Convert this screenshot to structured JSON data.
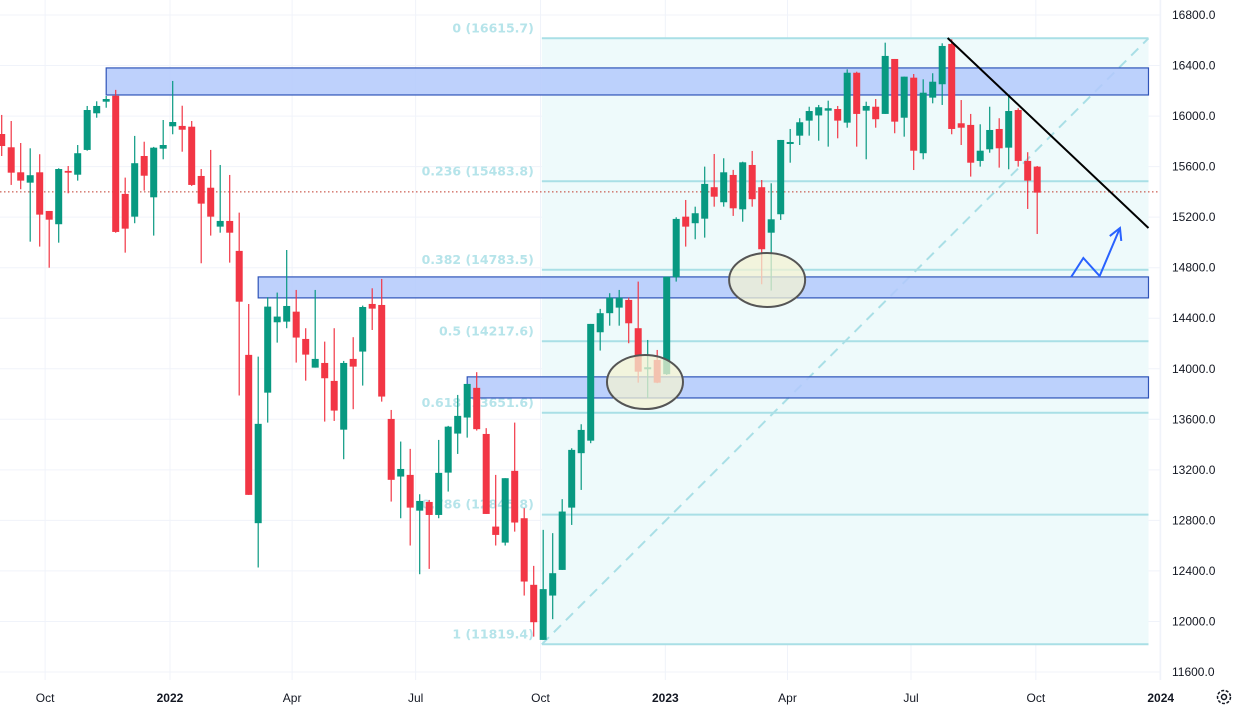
{
  "chart_data": {
    "type": "candlestick",
    "interval": "weekly",
    "ylim": [
      11600,
      16800
    ],
    "grid": true,
    "y_ticks": [
      "16800.0",
      "16400.0",
      "16000.0",
      "15600.0",
      "15200.0",
      "14800.0",
      "14400.0",
      "14000.0",
      "13600.0",
      "13200.0",
      "12800.0",
      "12400.0",
      "12000.0",
      "11600.0"
    ],
    "x_ticks": [
      {
        "label": "Oct",
        "date": "2021-10-01",
        "bold": false
      },
      {
        "label": "2022",
        "date": "2022-01-01",
        "bold": true
      },
      {
        "label": "Apr",
        "date": "2022-04-01",
        "bold": false
      },
      {
        "label": "Jul",
        "date": "2022-07-01",
        "bold": false
      },
      {
        "label": "Oct",
        "date": "2022-10-01",
        "bold": false
      },
      {
        "label": "2023",
        "date": "2023-01-01",
        "bold": true
      },
      {
        "label": "Apr",
        "date": "2023-04-01",
        "bold": false
      },
      {
        "label": "Jul",
        "date": "2023-07-01",
        "bold": false
      },
      {
        "label": "Oct",
        "date": "2023-10-01",
        "bold": false
      },
      {
        "label": "2024",
        "date": "2024-01-01",
        "bold": true
      }
    ],
    "colors": {
      "up": "#089981",
      "down": "#f23645",
      "fib_line": "#a9dfe6",
      "fib_fill": "#eefafb",
      "zone_fill": "#b3c9fb",
      "zone_border": "#2f54b8",
      "trendline": "#000000",
      "arrow": "#2962ff",
      "ellipse_fill": "#f3f1d3",
      "ellipse_border": "#555555",
      "last_price": "#c0392b",
      "grid": "#f0f3fa"
    },
    "last_price_line": 15400,
    "candles_columns": [
      "date",
      "open",
      "high",
      "low",
      "close"
    ],
    "candles": [
      [
        "2021-08-30",
        15858,
        16009,
        15684,
        15763
      ],
      [
        "2021-09-06",
        15753,
        15961,
        15455,
        15552
      ],
      [
        "2021-09-13",
        15555,
        15787,
        15421,
        15489
      ],
      [
        "2021-09-20",
        15473,
        15745,
        15006,
        15532
      ],
      [
        "2021-09-27",
        15555,
        15698,
        14967,
        15220
      ],
      [
        "2021-10-04",
        15249,
        15249,
        14800,
        15180
      ],
      [
        "2021-10-11",
        15144,
        15587,
        14998,
        15581
      ],
      [
        "2021-10-18",
        15566,
        15605,
        15389,
        15552
      ],
      [
        "2021-10-25",
        15536,
        15771,
        15489,
        15706
      ],
      [
        "2021-11-01",
        15732,
        16080,
        15726,
        16048
      ],
      [
        "2021-11-08",
        16022,
        16117,
        15987,
        16080
      ],
      [
        "2021-11-15",
        16114,
        16159,
        16066,
        16135
      ],
      [
        "2021-11-22",
        16161,
        16207,
        15077,
        15083
      ],
      [
        "2021-11-29",
        15384,
        15513,
        14919,
        15109
      ],
      [
        "2021-12-06",
        15204,
        15843,
        15152,
        15627
      ],
      [
        "2021-12-13",
        15684,
        15797,
        15410,
        15528
      ],
      [
        "2021-12-20",
        15357,
        15756,
        15054,
        15750
      ],
      [
        "2021-12-27",
        15742,
        15969,
        15658,
        15771
      ],
      [
        "2022-01-03",
        15919,
        16278,
        15856,
        15953
      ],
      [
        "2022-01-10",
        15922,
        16082,
        15718,
        15892
      ],
      [
        "2022-01-17",
        15916,
        15961,
        15447,
        15455
      ],
      [
        "2022-01-24",
        15526,
        15581,
        14835,
        15307
      ],
      [
        "2022-01-31",
        15433,
        15732,
        15054,
        15204
      ],
      [
        "2022-02-07",
        15125,
        15613,
        15077,
        15170
      ],
      [
        "2022-02-14",
        15170,
        15534,
        14840,
        15077
      ],
      [
        "2022-02-21",
        14933,
        15236,
        13788,
        14531
      ],
      [
        "2022-02-28",
        14110,
        14513,
        13002,
        13002
      ],
      [
        "2022-03-07",
        12778,
        14096,
        12427,
        13564
      ],
      [
        "2022-03-14",
        13811,
        14566,
        13574,
        14492
      ],
      [
        "2022-03-21",
        14368,
        14603,
        14207,
        14413
      ],
      [
        "2022-03-28",
        14373,
        14940,
        14321,
        14497
      ],
      [
        "2022-04-04",
        14452,
        14624,
        14049,
        14247
      ],
      [
        "2022-04-11",
        14236,
        14321,
        13906,
        14112
      ],
      [
        "2022-04-18",
        14009,
        14624,
        14009,
        14078
      ],
      [
        "2022-04-25",
        14046,
        14215,
        13582,
        13925
      ],
      [
        "2022-05-02",
        13904,
        14321,
        13587,
        13669
      ],
      [
        "2022-05-09",
        13518,
        14062,
        13284,
        14046
      ],
      [
        "2022-05-16",
        14078,
        14250,
        13680,
        14017
      ],
      [
        "2022-05-23",
        14136,
        14500,
        13867,
        14489
      ],
      [
        "2022-05-30",
        14513,
        14637,
        14307,
        14476
      ],
      [
        "2022-06-06",
        14505,
        14711,
        13740,
        13780
      ],
      [
        "2022-06-13",
        13603,
        13674,
        12949,
        13121
      ],
      [
        "2022-06-20",
        13147,
        13424,
        12817,
        13207
      ],
      [
        "2022-06-27",
        13160,
        13366,
        12601,
        12901
      ],
      [
        "2022-07-04",
        12877,
        13007,
        12374,
        12954
      ],
      [
        "2022-07-11",
        12946,
        12962,
        12416,
        12843
      ],
      [
        "2022-07-18",
        12843,
        13437,
        12817,
        13176
      ],
      [
        "2022-07-25",
        13178,
        13548,
        13028,
        13542
      ],
      [
        "2022-08-01",
        13487,
        13793,
        13326,
        13627
      ],
      [
        "2022-08-08",
        13614,
        13880,
        13455,
        13880
      ],
      [
        "2022-08-15",
        13849,
        13973,
        13511,
        13522
      ],
      [
        "2022-08-22",
        13484,
        13530,
        12851,
        12851
      ],
      [
        "2022-08-29",
        12751,
        13160,
        12601,
        12685
      ],
      [
        "2022-09-05",
        12624,
        13134,
        12601,
        13134
      ],
      [
        "2022-09-12",
        13192,
        13574,
        12711,
        12783
      ],
      [
        "2022-09-19",
        12817,
        12897,
        12205,
        12316
      ],
      [
        "2022-09-26",
        12290,
        12440,
        11880,
        11994
      ],
      [
        "2022-10-03",
        11854,
        12725,
        11854,
        12256
      ],
      [
        "2022-10-10",
        12205,
        12699,
        12018,
        12382
      ],
      [
        "2022-10-17",
        12408,
        12968,
        12408,
        12870
      ],
      [
        "2022-10-24",
        12901,
        13371,
        12764,
        13358
      ],
      [
        "2022-10-31",
        13332,
        13561,
        13041,
        13516
      ],
      [
        "2022-11-07",
        13431,
        14355,
        13411,
        14355
      ],
      [
        "2022-11-14",
        14289,
        14474,
        14144,
        14440
      ],
      [
        "2022-11-21",
        14440,
        14598,
        14341,
        14563
      ],
      [
        "2022-11-28",
        14484,
        14624,
        14341,
        14563
      ],
      [
        "2022-12-05",
        14545,
        14563,
        14202,
        14360
      ],
      [
        "2022-12-12",
        14321,
        14690,
        13890,
        13977
      ],
      [
        "2022-12-19",
        13996,
        14228,
        13767,
        14012
      ],
      [
        "2022-12-26",
        14070,
        14149,
        13886,
        13890
      ],
      [
        "2023-01-02",
        13957,
        14729,
        13951,
        14729
      ],
      [
        "2023-01-09",
        14724,
        15199,
        14690,
        15186
      ],
      [
        "2023-01-16",
        15204,
        15336,
        14967,
        15125
      ],
      [
        "2023-01-23",
        15152,
        15283,
        15025,
        15231
      ],
      [
        "2023-01-30",
        15188,
        15600,
        15038,
        15463
      ],
      [
        "2023-02-06",
        15437,
        15700,
        15283,
        15362
      ],
      [
        "2023-02-13",
        15318,
        15666,
        15283,
        15555
      ],
      [
        "2023-02-20",
        15534,
        15574,
        15210,
        15270
      ],
      [
        "2023-02-27",
        15262,
        15639,
        15164,
        15634
      ],
      [
        "2023-03-06",
        15613,
        15724,
        15283,
        15342
      ],
      [
        "2023-03-13",
        15437,
        15494,
        14669,
        14946
      ],
      [
        "2023-03-20",
        15077,
        15468,
        14619,
        15183
      ],
      [
        "2023-03-27",
        15223,
        15811,
        15178,
        15811
      ],
      [
        "2023-04-03",
        15779,
        15898,
        15631,
        15795
      ],
      [
        "2023-04-10",
        15845,
        15983,
        15771,
        15951
      ],
      [
        "2023-04-17",
        15964,
        16074,
        15845,
        16040
      ],
      [
        "2023-04-24",
        16005,
        16088,
        15805,
        16070
      ],
      [
        "2023-05-01",
        16043,
        16122,
        15758,
        16062
      ],
      [
        "2023-05-08",
        16056,
        16080,
        15824,
        15964
      ],
      [
        "2023-05-15",
        15948,
        16370,
        15908,
        16343
      ],
      [
        "2023-05-22",
        16343,
        16351,
        15758,
        16017
      ],
      [
        "2023-05-29",
        16043,
        16114,
        15658,
        16080
      ],
      [
        "2023-06-05",
        16074,
        16135,
        15908,
        15975
      ],
      [
        "2023-06-12",
        16017,
        16581,
        16017,
        16476
      ],
      [
        "2023-06-19",
        16452,
        16452,
        15864,
        15956
      ],
      [
        "2023-06-26",
        15987,
        16312,
        15837,
        16312
      ],
      [
        "2023-07-03",
        16304,
        16333,
        15573,
        15726
      ],
      [
        "2023-07-10",
        15706,
        16291,
        15658,
        16185
      ],
      [
        "2023-07-17",
        16146,
        16339,
        16101,
        16272
      ],
      [
        "2023-07-24",
        16252,
        16576,
        16088,
        16555
      ],
      [
        "2023-07-31",
        16571,
        16608,
        15856,
        15898
      ],
      [
        "2023-08-07",
        15943,
        16127,
        15771,
        15908
      ],
      [
        "2023-08-14",
        15930,
        16017,
        15521,
        15631
      ],
      [
        "2023-08-21",
        15645,
        15935,
        15600,
        15726
      ],
      [
        "2023-08-28",
        15737,
        16074,
        15710,
        15890
      ],
      [
        "2023-09-04",
        15898,
        15983,
        15592,
        15745
      ],
      [
        "2023-09-11",
        15750,
        16159,
        15579,
        16040
      ],
      [
        "2023-09-18",
        16048,
        16062,
        15600,
        15645
      ],
      [
        "2023-09-25",
        15645,
        15714,
        15265,
        15489
      ],
      [
        "2023-10-02",
        15600,
        15605,
        15067,
        15394
      ]
    ],
    "fibonacci": {
      "start_date": "2022-10-02",
      "end_date": "2023-12-23",
      "high": 16615.7,
      "low": 11819.4,
      "levels": [
        {
          "ratio": "0",
          "price": 16615.7,
          "label": "0 (16615.7)"
        },
        {
          "ratio": "0.236",
          "price": 15483.8,
          "label": "0.236 (15483.8)"
        },
        {
          "ratio": "0.382",
          "price": 14783.5,
          "label": "0.382 (14783.5)"
        },
        {
          "ratio": "0.5",
          "price": 14217.6,
          "label": "0.5 (14217.6)"
        },
        {
          "ratio": "0.618",
          "price": 13651.6,
          "label": "0.618 (13651.6)"
        },
        {
          "ratio": "0.786",
          "price": 12845.8,
          "label": "0.786 (12845.8)"
        },
        {
          "ratio": "1",
          "price": 11819.4,
          "label": "1 (11819.4)"
        }
      ]
    },
    "annotations": {
      "zones": [
        {
          "start": "2021-11-15",
          "end": "2023-12-23",
          "top": 16381,
          "bottom": 16167
        },
        {
          "start": "2022-03-07",
          "end": "2023-12-23",
          "top": 14727,
          "bottom": 14561
        },
        {
          "start": "2022-08-08",
          "end": "2023-12-23",
          "top": 13936,
          "bottom": 13769
        }
      ],
      "ellipses": [
        {
          "date": "2023-03-17",
          "price": 14703
        },
        {
          "date": "2022-12-17",
          "price": 13895
        }
      ],
      "trendline": {
        "from": [
          "2023-07-28",
          16618
        ],
        "to": [
          "2023-12-23",
          15114
        ]
      },
      "projection_arrow": [
        [
          "2023-10-27",
          14726
        ],
        [
          "2023-11-05",
          14877
        ],
        [
          "2023-11-17",
          14734
        ],
        [
          "2023-12-02",
          15114
        ]
      ]
    }
  },
  "toolbar": {
    "settings_icon": "gear-icon"
  }
}
